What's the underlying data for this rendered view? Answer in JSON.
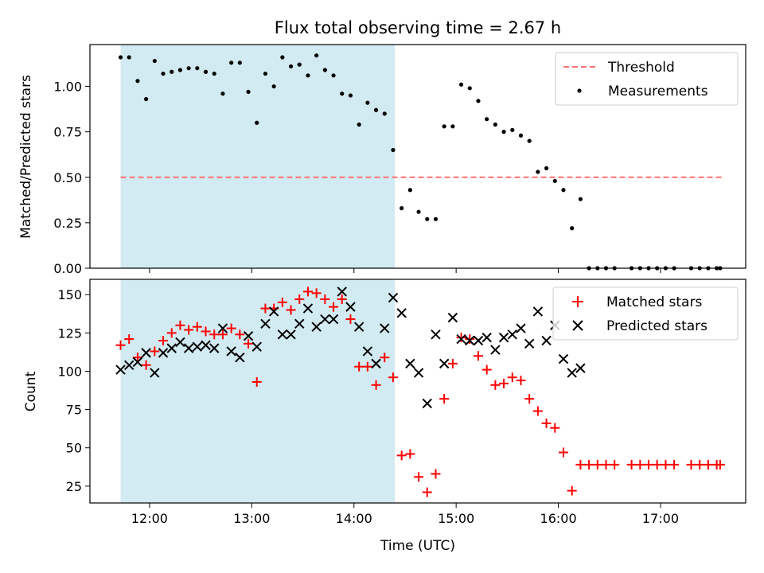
{
  "figure": {
    "title": "Flux total observing time = 2.67 h",
    "xlabel": "Time (UTC)"
  },
  "chart_data": [
    {
      "type": "scatter",
      "panel": "top",
      "ylabel": "Matched/Predicted stars",
      "xlim": [
        "11:25",
        "17:50"
      ],
      "ylim": [
        0,
        1.23
      ],
      "yticks": [
        "0.00",
        "0.25",
        "0.50",
        "0.75",
        "1.00"
      ],
      "ytick_values": [
        0,
        0.25,
        0.5,
        0.75,
        1.0
      ],
      "xticks": [
        "12:00",
        "13:00",
        "14:00",
        "15:00",
        "16:00",
        "17:00"
      ],
      "shaded_interval": [
        "11:43",
        "14:24"
      ],
      "shade_color": "#add8e6",
      "legend_position": "upper right",
      "threshold": {
        "name": "Threshold",
        "value": 0.5,
        "x_range": [
          "11:43",
          "17:36"
        ],
        "color": "#ff7070",
        "style": "dashed"
      },
      "series": [
        {
          "name": "Measurements",
          "marker": "dot",
          "color": "#000000",
          "x": [
            "11:43",
            "11:48",
            "11:53",
            "11:58",
            "12:03",
            "12:08",
            "12:13",
            "12:18",
            "12:23",
            "12:28",
            "12:33",
            "12:38",
            "12:43",
            "12:48",
            "12:53",
            "12:58",
            "13:03",
            "13:08",
            "13:13",
            "13:18",
            "13:23",
            "13:28",
            "13:33",
            "13:38",
            "13:43",
            "13:48",
            "13:53",
            "13:58",
            "14:03",
            "14:08",
            "14:13",
            "14:18",
            "14:23",
            "14:28",
            "14:33",
            "14:38",
            "14:43",
            "14:48",
            "14:53",
            "14:58",
            "15:03",
            "15:08",
            "15:13",
            "15:18",
            "15:23",
            "15:28",
            "15:33",
            "15:38",
            "15:43",
            "15:48",
            "15:53",
            "15:58",
            "16:03",
            "16:08",
            "16:13",
            "16:18",
            "16:23",
            "16:28",
            "16:33",
            "16:43",
            "16:48",
            "16:53",
            "16:58",
            "17:03",
            "17:08",
            "17:18",
            "17:23",
            "17:28",
            "17:33",
            "17:35"
          ],
          "y": [
            1.16,
            1.16,
            1.03,
            0.93,
            1.14,
            1.07,
            1.08,
            1.09,
            1.1,
            1.1,
            1.08,
            1.07,
            0.96,
            1.13,
            1.13,
            0.97,
            0.8,
            1.07,
            1.0,
            1.16,
            1.11,
            1.12,
            1.06,
            1.17,
            1.09,
            1.06,
            0.96,
            0.95,
            0.79,
            0.91,
            0.87,
            0.85,
            0.65,
            0.33,
            0.43,
            0.31,
            0.27,
            0.27,
            0.78,
            0.78,
            1.01,
            0.99,
            0.92,
            0.82,
            0.79,
            0.75,
            0.76,
            0.73,
            0.7,
            0.53,
            0.55,
            0.48,
            0.43,
            0.22,
            0.38,
            0,
            0,
            0,
            0,
            0,
            0,
            0,
            0,
            0,
            0,
            0,
            0,
            0,
            0,
            0
          ]
        }
      ]
    },
    {
      "type": "scatter",
      "panel": "bottom",
      "ylabel": "Count",
      "xlim": [
        "11:25",
        "17:50"
      ],
      "ylim": [
        14,
        160
      ],
      "yticks": [
        "25",
        "50",
        "75",
        "100",
        "125",
        "150"
      ],
      "ytick_values": [
        25,
        50,
        75,
        100,
        125,
        150
      ],
      "xticks": [
        "12:00",
        "13:00",
        "14:00",
        "15:00",
        "16:00",
        "17:00"
      ],
      "shaded_interval": [
        "11:43",
        "14:24"
      ],
      "shade_color": "#add8e6",
      "legend_position": "upper right",
      "series": [
        {
          "name": "Matched stars",
          "marker": "plus",
          "color": "#ff0000",
          "x": [
            "11:43",
            "11:48",
            "11:53",
            "11:58",
            "12:03",
            "12:08",
            "12:13",
            "12:18",
            "12:23",
            "12:28",
            "12:33",
            "12:38",
            "12:43",
            "12:48",
            "12:53",
            "12:58",
            "13:03",
            "13:08",
            "13:13",
            "13:18",
            "13:23",
            "13:28",
            "13:33",
            "13:38",
            "13:43",
            "13:48",
            "13:53",
            "13:58",
            "14:03",
            "14:08",
            "14:13",
            "14:18",
            "14:23",
            "14:28",
            "14:33",
            "14:38",
            "14:43",
            "14:48",
            "14:53",
            "14:58",
            "15:03",
            "15:08",
            "15:13",
            "15:18",
            "15:23",
            "15:28",
            "15:33",
            "15:38",
            "15:43",
            "15:48",
            "15:53",
            "15:58",
            "16:03",
            "16:08",
            "16:13",
            "16:18",
            "16:23",
            "16:28",
            "16:33",
            "16:43",
            "16:48",
            "16:53",
            "16:58",
            "17:03",
            "17:08",
            "17:18",
            "17:23",
            "17:28",
            "17:33",
            "17:35"
          ],
          "y": [
            117,
            121,
            109,
            104,
            113,
            120,
            125,
            130,
            127,
            129,
            126,
            124,
            124,
            128,
            124,
            118,
            93,
            141,
            141,
            145,
            140,
            147,
            152,
            151,
            147,
            142,
            147,
            134,
            103,
            103,
            91,
            109,
            96,
            45,
            46,
            31,
            21,
            33,
            82,
            105,
            122,
            121,
            110,
            101,
            91,
            92,
            96,
            94,
            82,
            74,
            66,
            63,
            47,
            22,
            39,
            39,
            39,
            39,
            39,
            39,
            39,
            39,
            39,
            39,
            39,
            39,
            39,
            39,
            39,
            39
          ]
        },
        {
          "name": "Predicted stars",
          "marker": "x",
          "color": "#000000",
          "x": [
            "11:43",
            "11:48",
            "11:53",
            "11:58",
            "12:03",
            "12:08",
            "12:13",
            "12:18",
            "12:23",
            "12:28",
            "12:33",
            "12:38",
            "12:43",
            "12:48",
            "12:53",
            "12:58",
            "13:03",
            "13:08",
            "13:13",
            "13:18",
            "13:23",
            "13:28",
            "13:33",
            "13:38",
            "13:43",
            "13:48",
            "13:53",
            "13:58",
            "14:03",
            "14:08",
            "14:13",
            "14:18",
            "14:23",
            "14:28",
            "14:33",
            "14:38",
            "14:43",
            "14:48",
            "14:53",
            "14:58",
            "15:03",
            "15:08",
            "15:13",
            "15:18",
            "15:23",
            "15:28",
            "15:33",
            "15:38",
            "15:43",
            "15:48",
            "15:53",
            "15:58",
            "16:03",
            "16:08",
            "16:13"
          ],
          "y": [
            101,
            104,
            106,
            112,
            99,
            112,
            115,
            119,
            115,
            116,
            117,
            115,
            128,
            113,
            109,
            123,
            116,
            131,
            139,
            124,
            124,
            131,
            141,
            129,
            134,
            134,
            152,
            142,
            129,
            113,
            105,
            128,
            148,
            138,
            105,
            99,
            79,
            124,
            105,
            135,
            121,
            120,
            120,
            122,
            114,
            122,
            124,
            128,
            118,
            139,
            120,
            130,
            108,
            99,
            102
          ]
        }
      ]
    }
  ]
}
